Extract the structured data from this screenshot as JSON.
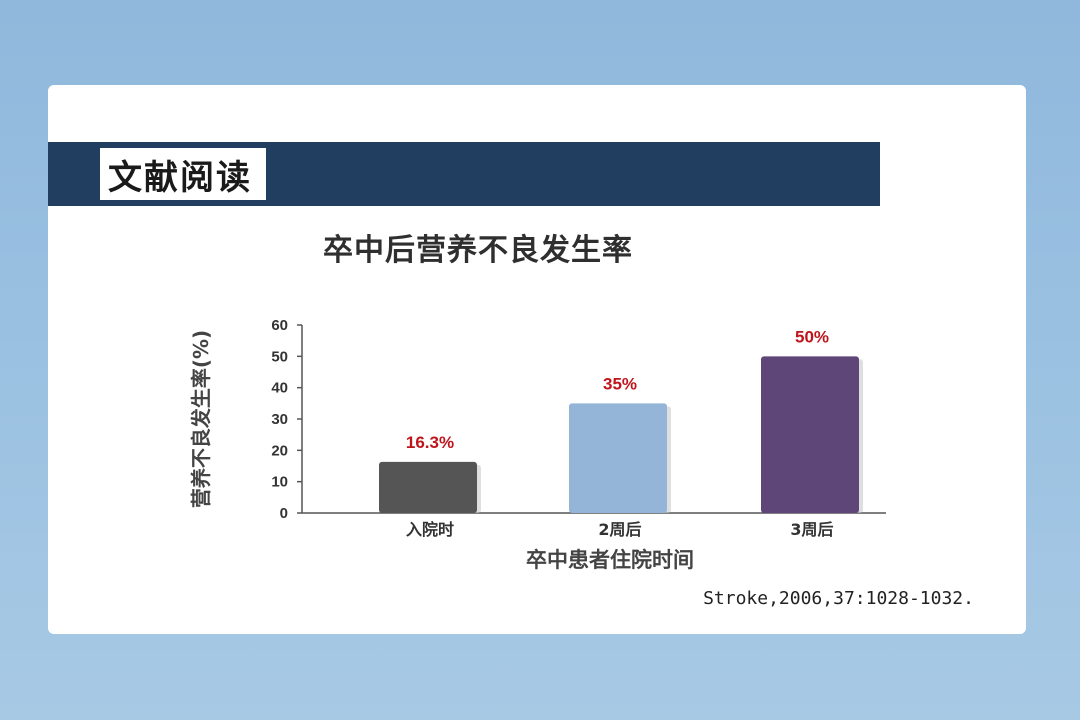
{
  "header": {
    "title": "文献阅读"
  },
  "chart_data": {
    "type": "bar",
    "title": "卒中后营养不良发生率",
    "xlabel": "卒中患者住院时间",
    "ylabel": "营养不良发生率(%)",
    "categories": [
      "入院时",
      "2周后",
      "3周后"
    ],
    "values": [
      16.3,
      35,
      50
    ],
    "value_labels": [
      "16.3%",
      "35%",
      "50%"
    ],
    "bar_colors": [
      "#555555",
      "#94b4d8",
      "#5e4678"
    ],
    "value_label_color": "#c0141b",
    "ylim": [
      0,
      60
    ],
    "yticks": [
      0,
      10,
      20,
      30,
      40,
      50,
      60
    ],
    "grid": false,
    "legend": "none"
  },
  "citation": "Stroke,2006,37:1028-1032."
}
